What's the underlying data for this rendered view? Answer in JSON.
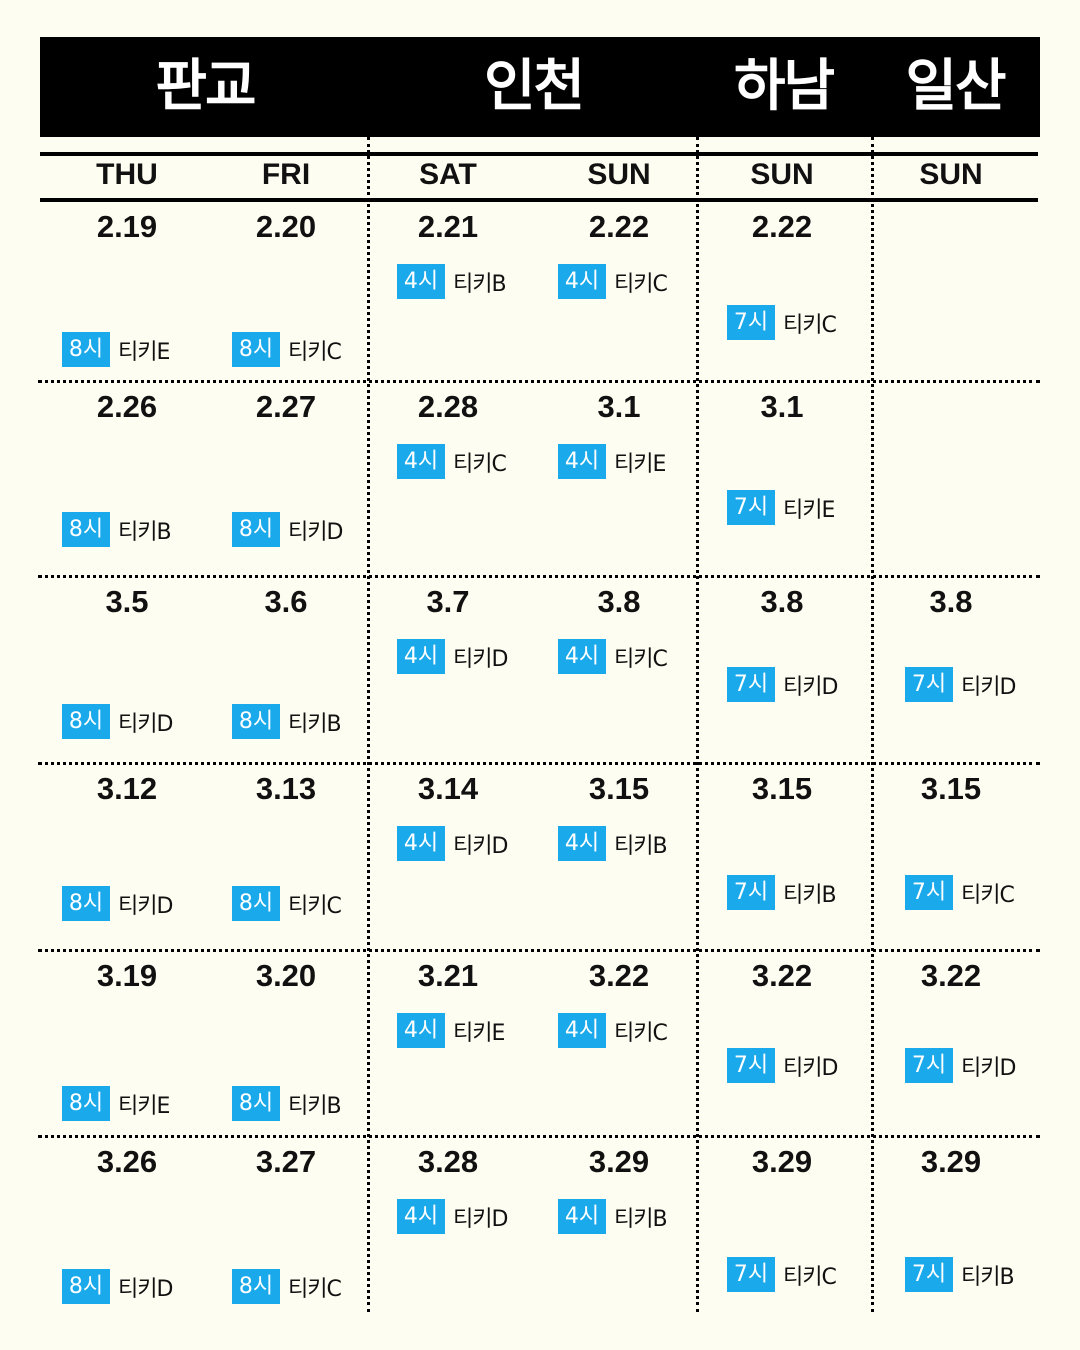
{
  "venues": [
    "판교",
    "인천",
    "하남",
    "일산"
  ],
  "days": [
    "THU",
    "FRI",
    "SAT",
    "SUN",
    "SUN",
    "SUN"
  ],
  "weeks": [
    [
      {
        "date": "2.19",
        "time": "8시",
        "ticket": "티키E"
      },
      {
        "date": "2.20",
        "time": "8시",
        "ticket": "티키C"
      },
      {
        "date": "2.21",
        "time": "4시",
        "ticket": "티키B"
      },
      {
        "date": "2.22",
        "time": "4시",
        "ticket": "티키C"
      },
      {
        "date": "2.22",
        "time": "7시",
        "ticket": "티키C"
      },
      null
    ],
    [
      {
        "date": "2.26",
        "time": "8시",
        "ticket": "티키B"
      },
      {
        "date": "2.27",
        "time": "8시",
        "ticket": "티키D"
      },
      {
        "date": "2.28",
        "time": "4시",
        "ticket": "티키C"
      },
      {
        "date": "3.1",
        "time": "4시",
        "ticket": "티키E"
      },
      {
        "date": "3.1",
        "time": "7시",
        "ticket": "티키E"
      },
      null
    ],
    [
      {
        "date": "3.5",
        "time": "8시",
        "ticket": "티키D"
      },
      {
        "date": "3.6",
        "time": "8시",
        "ticket": "티키B"
      },
      {
        "date": "3.7",
        "time": "4시",
        "ticket": "티키D"
      },
      {
        "date": "3.8",
        "time": "4시",
        "ticket": "티키C"
      },
      {
        "date": "3.8",
        "time": "7시",
        "ticket": "티키D"
      },
      {
        "date": "3.8",
        "time": "7시",
        "ticket": "티키D"
      }
    ],
    [
      {
        "date": "3.12",
        "time": "8시",
        "ticket": "티키D"
      },
      {
        "date": "3.13",
        "time": "8시",
        "ticket": "티키C"
      },
      {
        "date": "3.14",
        "time": "4시",
        "ticket": "티키D"
      },
      {
        "date": "3.15",
        "time": "4시",
        "ticket": "티키B"
      },
      {
        "date": "3.15",
        "time": "7시",
        "ticket": "티키B"
      },
      {
        "date": "3.15",
        "time": "7시",
        "ticket": "티키C"
      }
    ],
    [
      {
        "date": "3.19",
        "time": "8시",
        "ticket": "티키E"
      },
      {
        "date": "3.20",
        "time": "8시",
        "ticket": "티키B"
      },
      {
        "date": "3.21",
        "time": "4시",
        "ticket": "티키E"
      },
      {
        "date": "3.22",
        "time": "4시",
        "ticket": "티키C"
      },
      {
        "date": "3.22",
        "time": "7시",
        "ticket": "티키D"
      },
      {
        "date": "3.22",
        "time": "7시",
        "ticket": "티키D"
      }
    ],
    [
      {
        "date": "3.26",
        "time": "8시",
        "ticket": "티키D"
      },
      {
        "date": "3.27",
        "time": "8시",
        "ticket": "티키C"
      },
      {
        "date": "3.28",
        "time": "4시",
        "ticket": "티키D"
      },
      {
        "date": "3.29",
        "time": "4시",
        "ticket": "티키B"
      },
      {
        "date": "3.29",
        "time": "7시",
        "ticket": "티키C"
      },
      {
        "date": "3.29",
        "time": "7시",
        "ticket": "티키B"
      }
    ]
  ],
  "colors": {
    "background": "#fdfdf1",
    "time_badge": "#1aa9ea",
    "header": "#000000"
  }
}
